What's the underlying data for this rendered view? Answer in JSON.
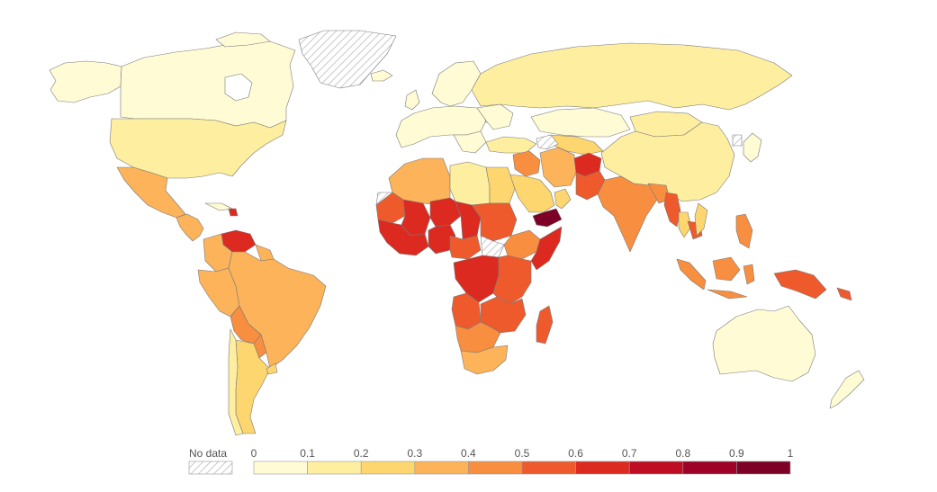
{
  "palette": {
    "c0": "#fffbd4",
    "c1": "#feeea0",
    "c2": "#fdd66f",
    "c3": "#fcb35a",
    "c4": "#f88e40",
    "c5": "#ef5a2d",
    "c6": "#dc2a21",
    "c7": "#bf0d24",
    "c8": "#9f0227",
    "c9": "#7d0026",
    "nodata_fill": "#ffffff",
    "nodata_hatch": "#c8c8c8",
    "border": "#7a7a7a"
  },
  "legend": {
    "no_data_label": "No data",
    "ticks": [
      "0",
      "0.1",
      "0.2",
      "0.3",
      "0.4",
      "0.5",
      "0.6",
      "0.7",
      "0.8",
      "0.9",
      "1"
    ],
    "bins": [
      {
        "from": 0.0,
        "to": 0.1,
        "color": "#fffbd4"
      },
      {
        "from": 0.1,
        "to": 0.2,
        "color": "#feeea0"
      },
      {
        "from": 0.2,
        "to": 0.3,
        "color": "#fdd66f"
      },
      {
        "from": 0.3,
        "to": 0.4,
        "color": "#fcb35a"
      },
      {
        "from": 0.4,
        "to": 0.5,
        "color": "#f88e40"
      },
      {
        "from": 0.5,
        "to": 0.6,
        "color": "#ef5a2d"
      },
      {
        "from": 0.6,
        "to": 0.7,
        "color": "#dc2a21"
      },
      {
        "from": 0.7,
        "to": 0.8,
        "color": "#bf0d24"
      },
      {
        "from": 0.8,
        "to": 0.9,
        "color": "#9f0227"
      },
      {
        "from": 0.9,
        "to": 1.0,
        "color": "#7d0026"
      }
    ]
  }
}
